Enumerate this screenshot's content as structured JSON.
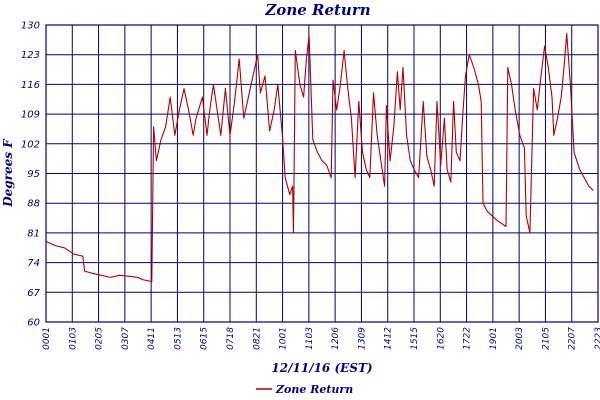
{
  "chart_data": {
    "type": "line",
    "title": "Zone Return",
    "xlabel": "12/11/16 (EST)",
    "ylabel": "Degrees F",
    "ylim": [
      60,
      130
    ],
    "yticks": [
      60,
      67,
      74,
      81,
      88,
      95,
      102,
      109,
      116,
      123,
      130
    ],
    "xticks": [
      "0001",
      "0103",
      "0205",
      "0307",
      "0411",
      "0513",
      "0615",
      "0718",
      "0821",
      "1001",
      "1103",
      "1206",
      "1309",
      "1412",
      "1515",
      "1620",
      "1722",
      "1901",
      "2003",
      "2105",
      "2207",
      "2223"
    ],
    "grid": true,
    "legend": "bottom-left",
    "colors": {
      "series": "#b00000",
      "grid": "#00007a",
      "text": "#000080"
    },
    "series": [
      {
        "name": "Zone Return",
        "points": [
          [
            0.0,
            79.0
          ],
          [
            1.0,
            78.0
          ],
          [
            2.0,
            77.5
          ],
          [
            3.0,
            76.0
          ],
          [
            4.0,
            75.5
          ],
          [
            4.2,
            72.0
          ],
          [
            5.0,
            71.5
          ],
          [
            6.0,
            71.0
          ],
          [
            7.0,
            70.5
          ],
          [
            8.0,
            71.0
          ],
          [
            9.0,
            70.8
          ],
          [
            10.0,
            70.5
          ],
          [
            10.5,
            70.0
          ],
          [
            11.5,
            69.5
          ],
          [
            11.7,
            106.0
          ],
          [
            12.0,
            98.0
          ],
          [
            12.5,
            103.0
          ],
          [
            13.0,
            106.0
          ],
          [
            13.5,
            113.0
          ],
          [
            14.0,
            104.0
          ],
          [
            14.5,
            110.0
          ],
          [
            15.0,
            115.0
          ],
          [
            15.5,
            110.0
          ],
          [
            16.0,
            104.0
          ],
          [
            16.3,
            108.0
          ],
          [
            17.0,
            113.0
          ],
          [
            17.5,
            104.0
          ],
          [
            17.8,
            110.0
          ],
          [
            18.2,
            116.0
          ],
          [
            18.6,
            110.0
          ],
          [
            19.0,
            104.0
          ],
          [
            19.5,
            115.0
          ],
          [
            20.0,
            104.0
          ],
          [
            20.5,
            112.0
          ],
          [
            21.0,
            122.0
          ],
          [
            21.5,
            108.0
          ],
          [
            22.0,
            113.0
          ],
          [
            22.5,
            118.0
          ],
          [
            23.0,
            123.0
          ],
          [
            23.3,
            114.0
          ],
          [
            23.8,
            118.0
          ],
          [
            24.3,
            105.0
          ],
          [
            24.8,
            110.0
          ],
          [
            25.2,
            116.0
          ],
          [
            25.7,
            104.0
          ],
          [
            26.0,
            94.0
          ],
          [
            26.5,
            90.0
          ],
          [
            26.8,
            92.0
          ],
          [
            26.9,
            81.0
          ],
          [
            27.1,
            124.0
          ],
          [
            27.6,
            116.0
          ],
          [
            28.0,
            113.0
          ],
          [
            28.3,
            122.0
          ],
          [
            28.6,
            127.5
          ],
          [
            29.0,
            103.0
          ],
          [
            29.5,
            100.0
          ],
          [
            30.0,
            98.0
          ],
          [
            30.5,
            97.0
          ],
          [
            31.0,
            94.0
          ],
          [
            31.2,
            117.0
          ],
          [
            31.6,
            110.0
          ],
          [
            32.0,
            116.0
          ],
          [
            32.4,
            124.0
          ],
          [
            32.8,
            115.0
          ],
          [
            33.2,
            108.0
          ],
          [
            33.6,
            94.0
          ],
          [
            34.0,
            112.0
          ],
          [
            34.4,
            100.0
          ],
          [
            34.8,
            96.0
          ],
          [
            35.2,
            94.0
          ],
          [
            35.6,
            114.0
          ],
          [
            36.0,
            104.0
          ],
          [
            36.4,
            98.0
          ],
          [
            36.8,
            92.0
          ],
          [
            37.0,
            111.0
          ],
          [
            37.4,
            98.0
          ],
          [
            37.8,
            106.0
          ],
          [
            38.2,
            119.0
          ],
          [
            38.5,
            110.0
          ],
          [
            38.8,
            120.0
          ],
          [
            39.2,
            104.0
          ],
          [
            39.6,
            98.0
          ],
          [
            40.0,
            96.0
          ],
          [
            40.5,
            94.0
          ],
          [
            41.0,
            112.0
          ],
          [
            41.4,
            99.0
          ],
          [
            41.8,
            96.0
          ],
          [
            42.2,
            92.0
          ],
          [
            42.5,
            112.0
          ],
          [
            42.9,
            97.0
          ],
          [
            43.3,
            108.0
          ],
          [
            43.6,
            96.0
          ],
          [
            44.0,
            93.0
          ],
          [
            44.3,
            112.0
          ],
          [
            44.6,
            100.0
          ],
          [
            45.0,
            98.0
          ],
          [
            45.3,
            109.0
          ],
          [
            45.6,
            118.0
          ],
          [
            46.0,
            123.0
          ],
          [
            46.5,
            120.0
          ],
          [
            47.0,
            116.0
          ],
          [
            47.3,
            112.0
          ],
          [
            47.5,
            88.0
          ],
          [
            48.0,
            86.0
          ],
          [
            49.0,
            84.0
          ],
          [
            50.0,
            82.5
          ],
          [
            50.2,
            120.0
          ],
          [
            50.6,
            116.0
          ],
          [
            51.0,
            110.0
          ],
          [
            51.5,
            104.0
          ],
          [
            52.0,
            101.0
          ],
          [
            52.2,
            85.0
          ],
          [
            52.6,
            81.0
          ],
          [
            53.0,
            115.0
          ],
          [
            53.4,
            110.0
          ],
          [
            53.8,
            118.0
          ],
          [
            54.2,
            125.0
          ],
          [
            54.6,
            120.0
          ],
          [
            55.0,
            113.0
          ],
          [
            55.2,
            104.0
          ],
          [
            55.6,
            108.0
          ],
          [
            56.0,
            113.0
          ],
          [
            56.3,
            120.0
          ],
          [
            56.6,
            128.0
          ],
          [
            57.0,
            116.0
          ],
          [
            57.4,
            100.0
          ],
          [
            58.0,
            96.0
          ],
          [
            58.5,
            94.0
          ],
          [
            59.0,
            92.0
          ],
          [
            59.5,
            91.0
          ]
        ]
      }
    ]
  }
}
